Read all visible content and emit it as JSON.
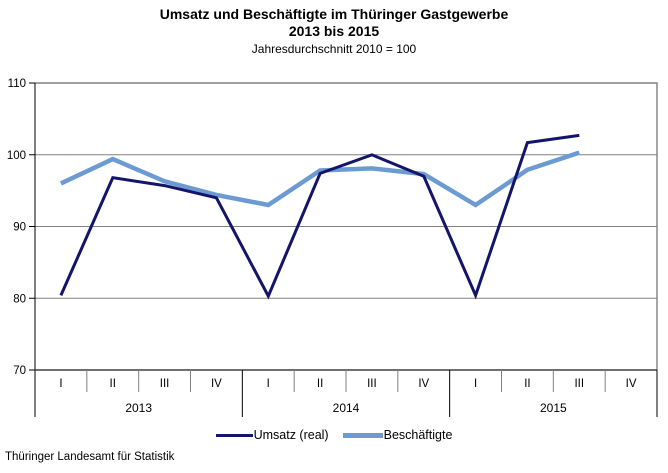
{
  "header": {
    "title_line1": "Umsatz und Beschäftigte im Thüringer Gastgewerbe",
    "title_line2": "2013 bis 2015",
    "subtitle": "Jahresdurchschnitt 2010 = 100"
  },
  "chart_data": {
    "type": "line",
    "title": "Umsatz und Beschäftigte im Thüringer Gastgewerbe 2013 bis 2015",
    "subtitle": "Jahresdurchschnitt 2010 = 100",
    "ylim": [
      70,
      110
    ],
    "y_ticks": [
      110,
      100,
      90,
      80,
      70
    ],
    "grid": true,
    "legend_position": "bottom",
    "x_categories": [
      "I",
      "II",
      "III",
      "IV",
      "I",
      "II",
      "III",
      "IV",
      "I",
      "II",
      "III",
      "IV"
    ],
    "year_groups": [
      {
        "label": "2013",
        "span": 4
      },
      {
        "label": "2014",
        "span": 4
      },
      {
        "label": "2015",
        "span": 4
      }
    ],
    "series": [
      {
        "name": "Umsatz (real)",
        "color": "#14146B",
        "stroke_width": 3,
        "values": [
          80.4,
          96.8,
          95.7,
          94.0,
          80.3,
          97.4,
          100.0,
          97.0,
          80.4,
          101.7,
          102.7,
          null
        ]
      },
      {
        "name": "Beschäftigte",
        "color": "#6C9BD3",
        "stroke_width": 4.5,
        "values": [
          96.0,
          99.4,
          96.3,
          94.4,
          93.0,
          97.8,
          98.1,
          97.3,
          93.0,
          97.9,
          100.3,
          null
        ]
      }
    ]
  },
  "legend": {
    "umsatz": "Umsatz (real)",
    "beschaeftigte": "Beschäftigte"
  },
  "footer": {
    "source": "Thüringer Landesamt für Statistik"
  },
  "colors": {
    "umsatz": "#14146B",
    "beschaeftigte": "#6C9BD3",
    "grid": "#808080",
    "border": "#808080",
    "axis": "#000000",
    "text": "#000000"
  }
}
